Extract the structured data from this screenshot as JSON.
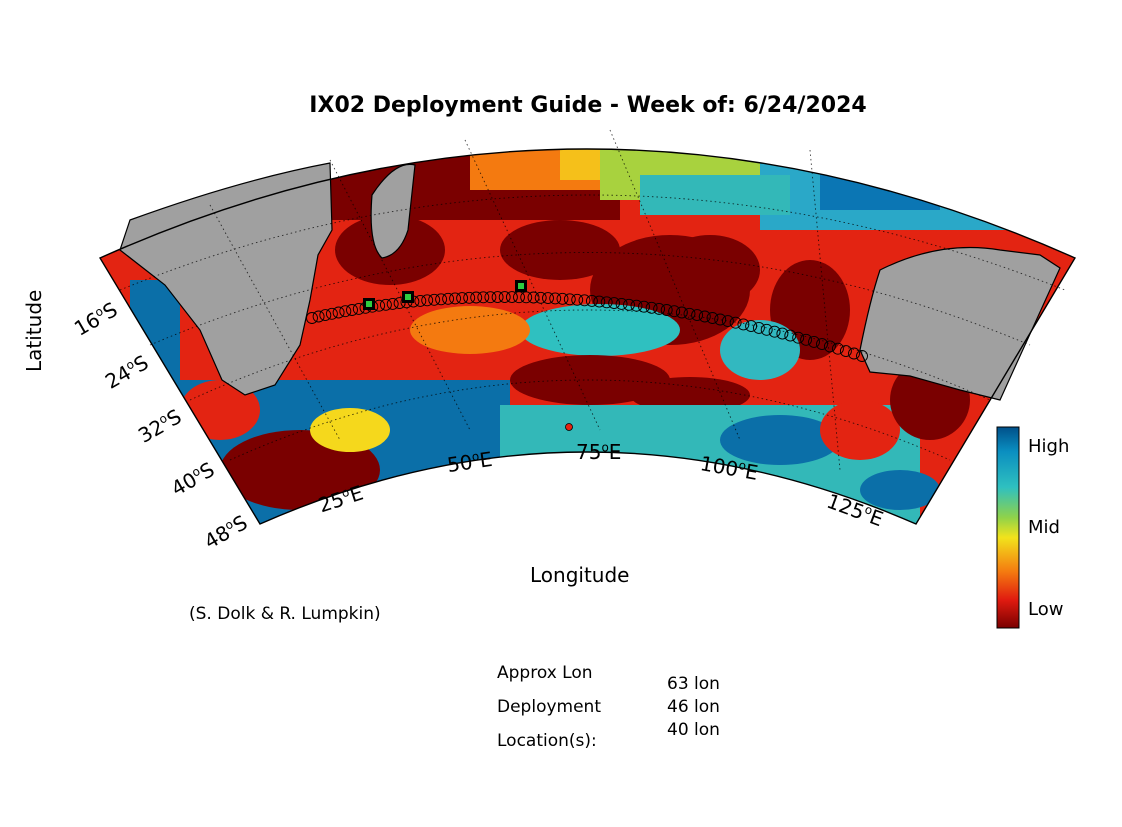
{
  "title": "IX02 Deployment Guide - Week of: 6/24/2024",
  "axes": {
    "x_label": "Longitude",
    "y_label": "Latitude",
    "lon_ticks": [
      {
        "deg": "25",
        "hemi": "E"
      },
      {
        "deg": "50",
        "hemi": "E"
      },
      {
        "deg": "75",
        "hemi": "E"
      },
      {
        "deg": "100",
        "hemi": "E"
      },
      {
        "deg": "125",
        "hemi": "E"
      }
    ],
    "lat_ticks": [
      {
        "deg": "16",
        "hemi": "S"
      },
      {
        "deg": "24",
        "hemi": "S"
      },
      {
        "deg": "32",
        "hemi": "S"
      },
      {
        "deg": "40",
        "hemi": "S"
      },
      {
        "deg": "48",
        "hemi": "S"
      }
    ]
  },
  "colorbar": {
    "labels": [
      "High",
      "Mid",
      "Low"
    ],
    "colors": [
      "#00008b",
      "#0070b0",
      "#22b8c8",
      "#8ed64a",
      "#f2e11e",
      "#f47a10",
      "#e01a10",
      "#7a0000"
    ]
  },
  "credit": "(S. Dolk & R. Lumpkin)",
  "deployment": {
    "label_lines": [
      "Approx Lon",
      "Deployment",
      "Location(s):"
    ],
    "locations": [
      "63 lon",
      "46 lon",
      "40 lon"
    ]
  },
  "map": {
    "land_color": "#a0a0a0",
    "track_marker": "open-circle",
    "deployment_marker": "green-square",
    "land_labels": []
  }
}
